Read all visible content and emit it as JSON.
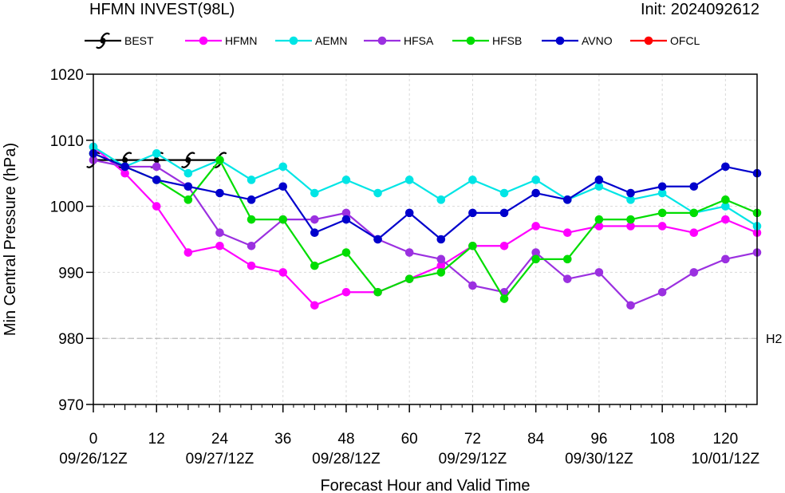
{
  "header": {
    "title": "HFMN INVEST(98L)",
    "init": "Init: 2024092612"
  },
  "chart_data": {
    "type": "line",
    "xlabel": "Forecast Hour and Valid Time",
    "ylabel": "Min Central Pressure (hPa)",
    "xlim": [
      0,
      126
    ],
    "ylim": [
      970,
      1020
    ],
    "x_ticks": [
      0,
      12,
      24,
      36,
      48,
      60,
      72,
      84,
      96,
      108,
      120
    ],
    "y_ticks": [
      970,
      980,
      990,
      1000,
      1010,
      1020
    ],
    "valid_time_labels": [
      {
        "hour": 0,
        "label": "09/26/12Z"
      },
      {
        "hour": 24,
        "label": "09/27/12Z"
      },
      {
        "hour": 48,
        "label": "09/28/12Z"
      },
      {
        "hour": 72,
        "label": "09/29/12Z"
      },
      {
        "hour": 96,
        "label": "09/30/12Z"
      },
      {
        "hour": 120,
        "label": "10/01/12Z"
      }
    ],
    "grid": true,
    "reference_lines": [
      {
        "label": "H2",
        "y": 980
      }
    ],
    "legend_position": "top",
    "series": [
      {
        "name": "BEST",
        "color": "#000000",
        "marker": "hurricane-symbol",
        "x": [
          0,
          6,
          12,
          18,
          24
        ],
        "y": [
          1007,
          1007,
          1007,
          1007,
          1007
        ]
      },
      {
        "name": "HFMN",
        "color": "#ff00ff",
        "marker": "circle",
        "x": [
          0,
          6,
          12,
          18,
          24,
          30,
          36,
          42,
          48,
          54,
          60,
          66,
          72,
          78,
          84,
          90,
          96,
          102,
          108,
          114,
          120,
          126
        ],
        "y": [
          1009,
          1005,
          1000,
          993,
          994,
          991,
          990,
          985,
          987,
          987,
          989,
          991,
          994,
          994,
          997,
          996,
          997,
          997,
          997,
          996,
          998,
          996
        ]
      },
      {
        "name": "AEMN",
        "color": "#00e5e5",
        "marker": "circle",
        "x": [
          0,
          6,
          12,
          18,
          24,
          30,
          36,
          42,
          48,
          54,
          60,
          66,
          72,
          78,
          84,
          90,
          96,
          102,
          108,
          114,
          120,
          126
        ],
        "y": [
          1009,
          1006,
          1008,
          1005,
          1007,
          1004,
          1006,
          1002,
          1004,
          1002,
          1004,
          1001,
          1004,
          1002,
          1004,
          1001,
          1003,
          1001,
          1002,
          999,
          1000,
          997
        ]
      },
      {
        "name": "HFSA",
        "color": "#9b30e0",
        "marker": "circle",
        "x": [
          0,
          6,
          12,
          18,
          24,
          30,
          36,
          42,
          48,
          54,
          60,
          66,
          72,
          78,
          84,
          90,
          96,
          102,
          108,
          114,
          120,
          126
        ],
        "y": [
          1007,
          1006,
          1006,
          1003,
          996,
          994,
          998,
          998,
          999,
          995,
          993,
          992,
          988,
          987,
          993,
          989,
          990,
          985,
          987,
          990,
          992,
          993
        ]
      },
      {
        "name": "HFSB",
        "color": "#00dd00",
        "marker": "circle",
        "x": [
          0,
          6,
          12,
          18,
          24,
          30,
          36,
          42,
          48,
          54,
          60,
          66,
          72,
          78,
          84,
          90,
          96,
          102,
          108,
          114,
          120,
          126
        ],
        "y": [
          1008,
          1006,
          1004,
          1001,
          1007,
          998,
          998,
          991,
          993,
          987,
          989,
          990,
          994,
          986,
          992,
          992,
          998,
          998,
          999,
          999,
          1001,
          999
        ]
      },
      {
        "name": "AVNO",
        "color": "#0000cc",
        "marker": "circle",
        "x": [
          0,
          6,
          12,
          18,
          24,
          30,
          36,
          42,
          48,
          54,
          60,
          66,
          72,
          78,
          84,
          90,
          96,
          102,
          108,
          114,
          120,
          126
        ],
        "y": [
          1008,
          1006,
          1004,
          1003,
          1002,
          1001,
          1003,
          996,
          998,
          995,
          999,
          995,
          999,
          999,
          1002,
          1001,
          1004,
          1002,
          1003,
          1003,
          1006,
          1005
        ]
      },
      {
        "name": "OFCL",
        "color": "#ff0000",
        "marker": "circle",
        "x": [],
        "y": []
      }
    ]
  }
}
